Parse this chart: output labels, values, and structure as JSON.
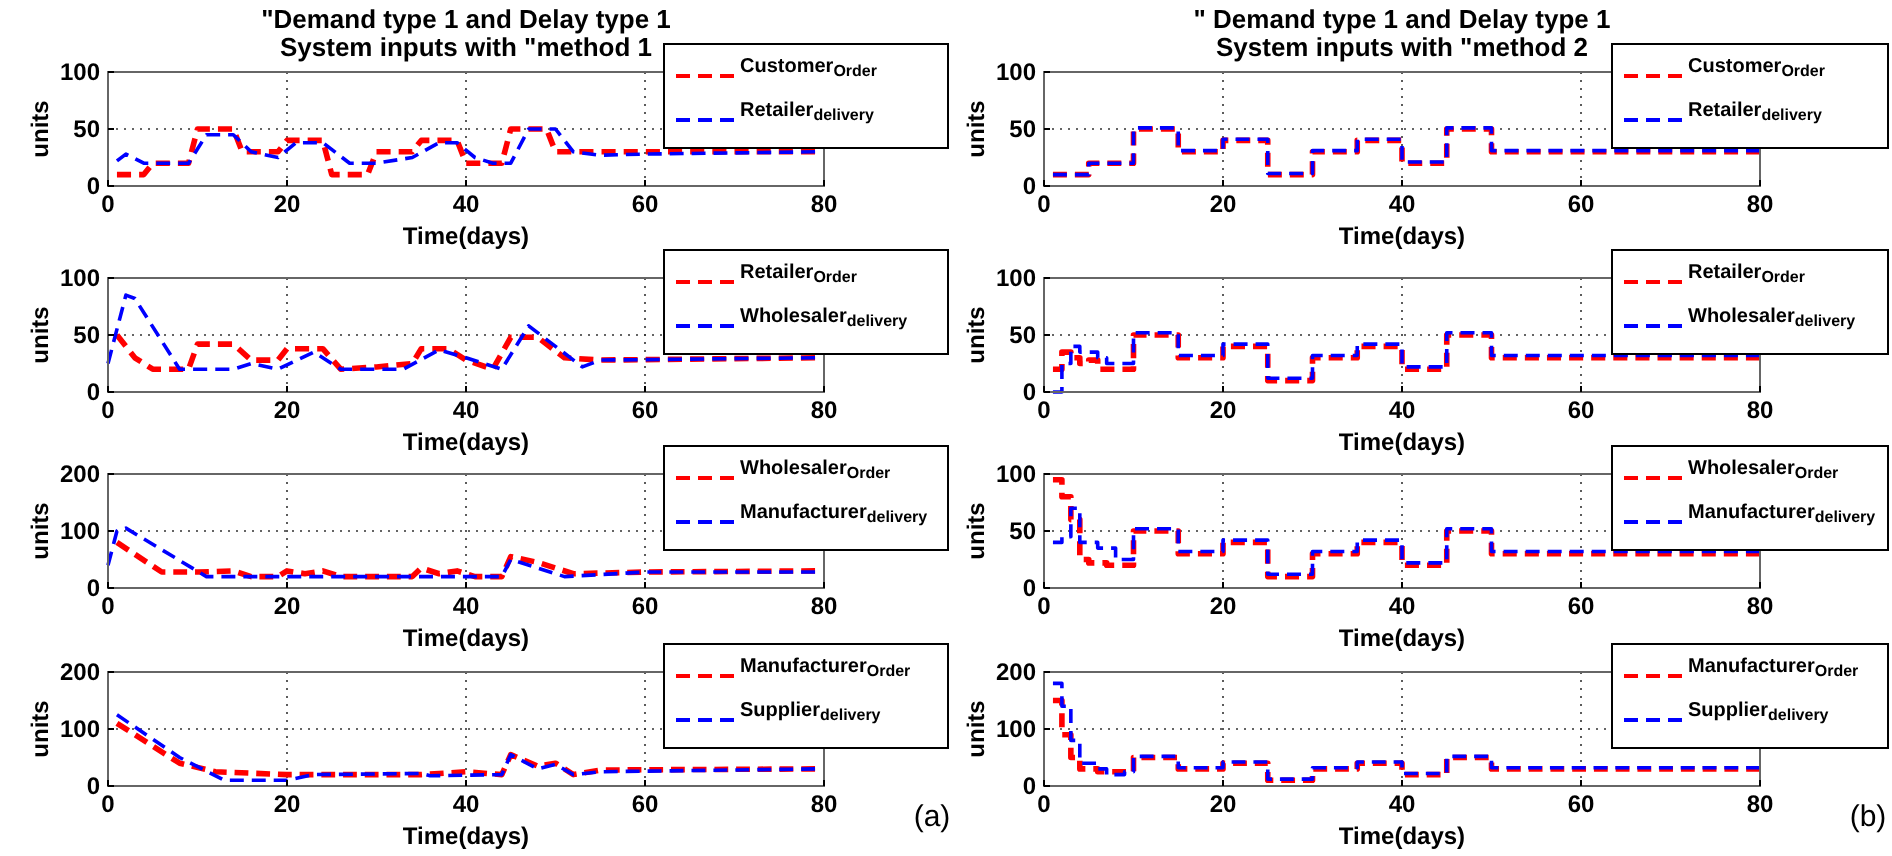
{
  "chart_data": [
    {
      "type": "line",
      "title": "\"Demand type 1 and Delay type 1\nSystem inputs with \"method 1",
      "xlabel": "Time(days)",
      "ylabel": "units",
      "xlim": [
        0,
        80
      ],
      "xticks": [
        0,
        20,
        40,
        60,
        80
      ],
      "ylim": [
        0,
        100
      ],
      "yticks": [
        0,
        50,
        100
      ],
      "grid": true,
      "legend": "top right",
      "line_style": "dashed",
      "series": [
        {
          "name": "Customer$_{Order}$",
          "color": "#ff0000",
          "x": [
            1,
            4,
            5,
            9,
            10,
            14,
            15,
            19,
            20,
            24,
            25,
            29,
            30,
            34,
            35,
            39,
            40,
            44,
            45,
            49,
            50,
            79
          ],
          "values": [
            10,
            10,
            20,
            20,
            50,
            50,
            30,
            30,
            40,
            40,
            10,
            10,
            30,
            30,
            40,
            40,
            20,
            20,
            50,
            50,
            30,
            30
          ]
        },
        {
          "name": "Retailer$_{delivery}$",
          "color": "#0000ff",
          "x": [
            1,
            2,
            4,
            9,
            11,
            14,
            16,
            19,
            21,
            24,
            27,
            30,
            34,
            37,
            39,
            41,
            43,
            45,
            47,
            50,
            52,
            55,
            60,
            79
          ],
          "values": [
            22,
            28,
            20,
            20,
            45,
            45,
            30,
            25,
            38,
            38,
            20,
            20,
            25,
            38,
            38,
            25,
            20,
            20,
            50,
            50,
            30,
            27,
            28,
            30
          ]
        }
      ]
    },
    {
      "type": "step",
      "title": "\" Demand type 1 and Delay type 1\nSystem inputs with \"method 2",
      "xlabel": "Time(days)",
      "ylabel": "units",
      "xlim": [
        0,
        80
      ],
      "xticks": [
        0,
        20,
        40,
        60,
        80
      ],
      "ylim": [
        0,
        100
      ],
      "yticks": [
        0,
        50,
        100
      ],
      "grid": true,
      "legend": "top right",
      "line_style": "dashed",
      "series": [
        {
          "name": "Customer$_{Order}$",
          "color": "#ff0000",
          "x": [
            1,
            5,
            10,
            15,
            20,
            25,
            30,
            35,
            40,
            45,
            50,
            80
          ],
          "values": [
            10,
            20,
            50,
            30,
            40,
            10,
            30,
            40,
            20,
            50,
            30,
            30
          ]
        },
        {
          "name": "Retailer$_{delivery}$",
          "color": "#0000ff",
          "x": [
            1,
            5,
            10,
            15,
            20,
            25,
            30,
            35,
            40,
            45,
            50,
            80
          ],
          "values": [
            10,
            20,
            51,
            31,
            41,
            11,
            31,
            41,
            21,
            51,
            31,
            31
          ]
        }
      ]
    },
    {
      "type": "line",
      "xlabel": "Time(days)",
      "ylabel": "units",
      "xlim": [
        0,
        80
      ],
      "xticks": [
        0,
        20,
        40,
        60,
        80
      ],
      "ylim": [
        0,
        100
      ],
      "yticks": [
        0,
        50,
        100
      ],
      "grid": true,
      "legend": "top right",
      "line_style": "dashed",
      "series": [
        {
          "name": "Retailer$_{Order}$",
          "color": "#ff0000",
          "x": [
            1,
            3,
            5,
            9,
            10,
            14,
            16,
            19,
            20,
            24,
            26,
            30,
            34,
            35,
            38,
            40,
            43,
            45,
            48,
            51,
            55,
            79
          ],
          "values": [
            50,
            30,
            20,
            20,
            42,
            42,
            28,
            28,
            38,
            38,
            20,
            22,
            25,
            38,
            38,
            28,
            20,
            48,
            48,
            30,
            28,
            30
          ]
        },
        {
          "name": "Wholesaler$_{delivery}$",
          "color": "#0000ff",
          "x": [
            0,
            2,
            3,
            8,
            14,
            16,
            19,
            23,
            26,
            33,
            37,
            40,
            44,
            47,
            53,
            55,
            79
          ],
          "values": [
            25,
            85,
            82,
            20,
            20,
            25,
            20,
            35,
            20,
            20,
            37,
            30,
            20,
            58,
            22,
            28,
            30
          ]
        }
      ]
    },
    {
      "type": "step",
      "xlabel": "Time(days)",
      "ylabel": "units",
      "xlim": [
        0,
        80
      ],
      "xticks": [
        0,
        20,
        40,
        60,
        80
      ],
      "ylim": [
        0,
        100
      ],
      "yticks": [
        0,
        50,
        100
      ],
      "grid": true,
      "legend": "top right",
      "line_style": "dashed",
      "series": [
        {
          "name": "Retailer$_{Order}$",
          "color": "#ff0000",
          "x": [
            1,
            2,
            3,
            4,
            5,
            6,
            10,
            15,
            20,
            25,
            30,
            35,
            40,
            45,
            50,
            80
          ],
          "values": [
            20,
            35,
            30,
            25,
            28,
            20,
            50,
            30,
            40,
            10,
            30,
            40,
            20,
            50,
            30,
            30
          ]
        },
        {
          "name": "Wholesaler$_{delivery}$",
          "color": "#0000ff",
          "x": [
            1,
            2,
            3,
            4,
            6,
            7,
            10,
            15,
            20,
            25,
            30,
            35,
            40,
            45,
            50,
            80
          ],
          "values": [
            0,
            25,
            40,
            35,
            30,
            25,
            52,
            32,
            42,
            12,
            32,
            42,
            22,
            52,
            32,
            32
          ]
        }
      ]
    },
    {
      "type": "line",
      "xlabel": "Time(days)",
      "ylabel": "units",
      "xlim": [
        0,
        80
      ],
      "xticks": [
        0,
        20,
        40,
        60,
        80
      ],
      "ylim": [
        0,
        200
      ],
      "yticks": [
        0,
        100,
        200
      ],
      "grid": true,
      "legend": "top right",
      "line_style": "dashed",
      "series": [
        {
          "name": "Wholesaler$_{Order}$",
          "color": "#ff0000",
          "x": [
            1,
            6,
            10,
            14,
            16,
            19,
            20,
            22,
            24,
            26,
            34,
            35,
            37,
            39,
            41,
            44,
            45,
            48,
            52,
            60,
            79
          ],
          "values": [
            80,
            28,
            28,
            30,
            20,
            20,
            30,
            25,
            30,
            20,
            20,
            35,
            25,
            30,
            20,
            20,
            55,
            45,
            25,
            28,
            30
          ]
        },
        {
          "name": "Manufacturer$_{delivery}$",
          "color": "#0000ff",
          "x": [
            0,
            1,
            2,
            11,
            44,
            45,
            51,
            60,
            79
          ],
          "values": [
            40,
            100,
            105,
            20,
            20,
            50,
            20,
            28,
            28
          ]
        }
      ]
    },
    {
      "type": "step",
      "xlabel": "Time(days)",
      "ylabel": "units",
      "xlim": [
        0,
        80
      ],
      "xticks": [
        0,
        20,
        40,
        60,
        80
      ],
      "ylim": [
        0,
        100
      ],
      "yticks": [
        0,
        50,
        100
      ],
      "grid": true,
      "legend": "top right",
      "line_style": "dashed",
      "series": [
        {
          "name": "Wholesaler$_{Order}$",
          "color": "#ff0000",
          "x": [
            1,
            2,
            3,
            4,
            5,
            7,
            10,
            15,
            20,
            25,
            30,
            35,
            40,
            45,
            50,
            80
          ],
          "values": [
            95,
            80,
            60,
            25,
            22,
            20,
            50,
            30,
            40,
            10,
            30,
            40,
            20,
            50,
            30,
            30
          ]
        },
        {
          "name": "Manufacturer$_{delivery}$",
          "color": "#0000ff",
          "x": [
            1,
            2,
            3,
            4,
            6,
            8,
            10,
            15,
            20,
            25,
            30,
            35,
            40,
            45,
            50,
            80
          ],
          "values": [
            40,
            45,
            70,
            40,
            35,
            25,
            52,
            32,
            42,
            12,
            32,
            42,
            22,
            52,
            32,
            32
          ]
        }
      ]
    },
    {
      "type": "line",
      "xlabel": "Time(days)",
      "ylabel": "units",
      "xlim": [
        0,
        80
      ],
      "xticks": [
        0,
        20,
        40,
        60,
        80
      ],
      "ylim": [
        0,
        200
      ],
      "yticks": [
        0,
        100,
        200
      ],
      "grid": true,
      "legend": "top right",
      "line_style": "dashed",
      "annotations": [
        "(a)"
      ],
      "series": [
        {
          "name": "Manufacturer$_{Order}$",
          "color": "#ff0000",
          "x": [
            1,
            8,
            12,
            20,
            23,
            35,
            40,
            44,
            45,
            48,
            50,
            52,
            55,
            79
          ],
          "values": [
            110,
            40,
            25,
            20,
            20,
            20,
            25,
            20,
            55,
            35,
            40,
            20,
            28,
            30
          ]
        },
        {
          "name": "Supplier$_{delivery}$",
          "color": "#0000ff",
          "x": [
            1,
            8,
            13,
            20,
            23,
            35,
            36,
            44,
            45,
            48,
            50,
            52,
            55,
            79
          ],
          "values": [
            125,
            50,
            10,
            10,
            20,
            22,
            18,
            20,
            55,
            30,
            38,
            20,
            25,
            30
          ]
        }
      ]
    },
    {
      "type": "step",
      "xlabel": "Time(days)",
      "ylabel": "units",
      "xlim": [
        0,
        80
      ],
      "xticks": [
        0,
        20,
        40,
        60,
        80
      ],
      "ylim": [
        0,
        200
      ],
      "yticks": [
        0,
        100,
        200
      ],
      "grid": true,
      "legend": "top right",
      "line_style": "dashed",
      "annotations": [
        "(b)"
      ],
      "series": [
        {
          "name": "Manufacturer$_{Order}$",
          "color": "#ff0000",
          "x": [
            1,
            2,
            3,
            4,
            6,
            8,
            10,
            15,
            20,
            25,
            30,
            35,
            40,
            45,
            50,
            80
          ],
          "values": [
            150,
            90,
            50,
            30,
            25,
            25,
            50,
            30,
            40,
            10,
            30,
            40,
            20,
            50,
            30,
            30
          ]
        },
        {
          "name": "Supplier$_{delivery}$",
          "color": "#0000ff",
          "x": [
            1,
            2,
            3,
            4,
            6,
            7,
            9,
            10,
            15,
            20,
            25,
            30,
            35,
            40,
            45,
            50,
            80
          ],
          "values": [
            180,
            140,
            80,
            40,
            30,
            20,
            25,
            52,
            32,
            42,
            12,
            32,
            42,
            22,
            52,
            32,
            32
          ]
        }
      ]
    }
  ]
}
